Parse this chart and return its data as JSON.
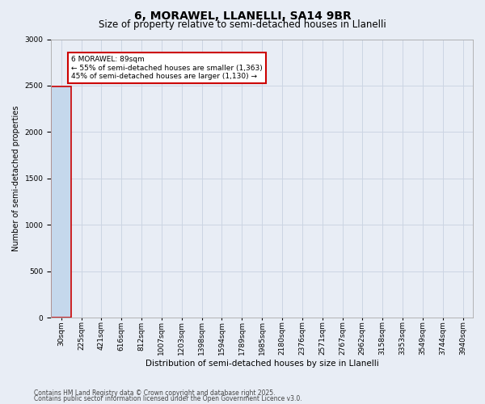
{
  "title1": "6, MORAWEL, LLANELLI, SA14 9BR",
  "title2": "Size of property relative to semi-detached houses in Llanelli",
  "xlabel": "Distribution of semi-detached houses by size in Llanelli",
  "ylabel": "Number of semi-detached properties",
  "annotation_line1": "6 MORAWEL: 89sqm",
  "annotation_line2": "← 55% of semi-detached houses are smaller (1,363)",
  "annotation_line3": "45% of semi-detached houses are larger (1,130) →",
  "footnote1": "Contains HM Land Registry data © Crown copyright and database right 2025.",
  "footnote2": "Contains public sector information licensed under the Open Government Licence v3.0.",
  "bin_labels": [
    "30sqm",
    "225sqm",
    "421sqm",
    "616sqm",
    "812sqm",
    "1007sqm",
    "1203sqm",
    "1398sqm",
    "1594sqm",
    "1789sqm",
    "1985sqm",
    "2180sqm",
    "2376sqm",
    "2571sqm",
    "2767sqm",
    "2962sqm",
    "3158sqm",
    "3353sqm",
    "3549sqm",
    "3744sqm",
    "3940sqm"
  ],
  "counts": [
    2493,
    0,
    0,
    0,
    0,
    0,
    0,
    0,
    0,
    0,
    0,
    0,
    0,
    0,
    0,
    0,
    0,
    0,
    0,
    0,
    0
  ],
  "bar_color": "#c5d8ec",
  "highlight_edge_color": "#cc0000",
  "normal_edge_color": "#c5d8ec",
  "grid_color": "#ccd5e3",
  "background_color": "#e8edf5",
  "highlight_bin_index": 0,
  "ylim": [
    0,
    3000
  ],
  "annotation_box_color": "#ffffff",
  "annotation_box_edge_color": "#cc0000",
  "title1_fontsize": 10,
  "title2_fontsize": 8.5,
  "xlabel_fontsize": 7.5,
  "ylabel_fontsize": 7,
  "tick_fontsize": 6.5,
  "annot_fontsize": 6.5,
  "footnote_fontsize": 5.5
}
